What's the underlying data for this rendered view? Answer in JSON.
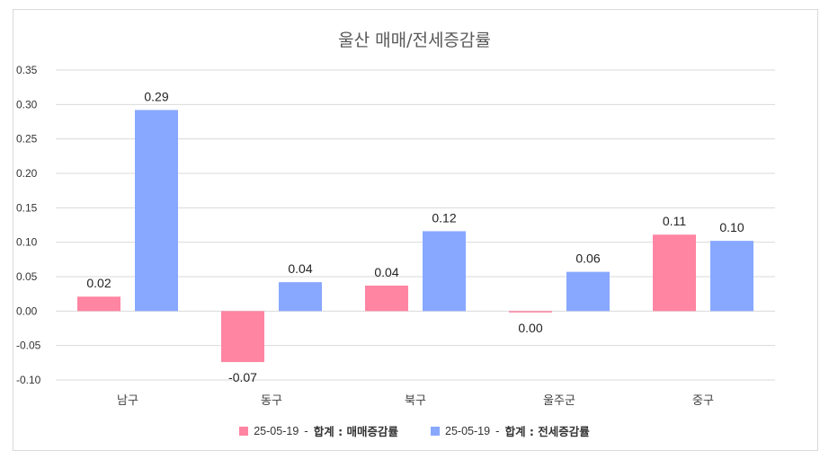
{
  "chart_data": {
    "type": "bar",
    "title": "울산 매매/전세증감률",
    "categories": [
      "남구",
      "동구",
      "북구",
      "울주군",
      "중구"
    ],
    "series": [
      {
        "legend_date": "25-05-19",
        "legend_bold": "합계 : 매매증감률",
        "color": "#ff85a2",
        "values": [
          0.021,
          -0.074,
          0.037,
          -0.002,
          0.111
        ],
        "labels": [
          "0.02",
          "-0.07",
          "0.04",
          "0.00",
          "0.11"
        ]
      },
      {
        "legend_date": "25-05-19",
        "legend_bold": "합계 : 전세증감률",
        "color": "#88a8ff",
        "values": [
          0.292,
          0.042,
          0.116,
          0.057,
          0.102
        ],
        "labels": [
          "0.29",
          "0.04",
          "0.12",
          "0.06",
          "0.10"
        ]
      }
    ],
    "yticks": [
      "0.35",
      "0.30",
      "0.25",
      "0.20",
      "0.15",
      "0.10",
      "0.05",
      "0.00",
      "-0.05",
      "-0.10"
    ],
    "ylim": [
      -0.1,
      0.35
    ],
    "grid": true,
    "legend_position": "bottom"
  }
}
